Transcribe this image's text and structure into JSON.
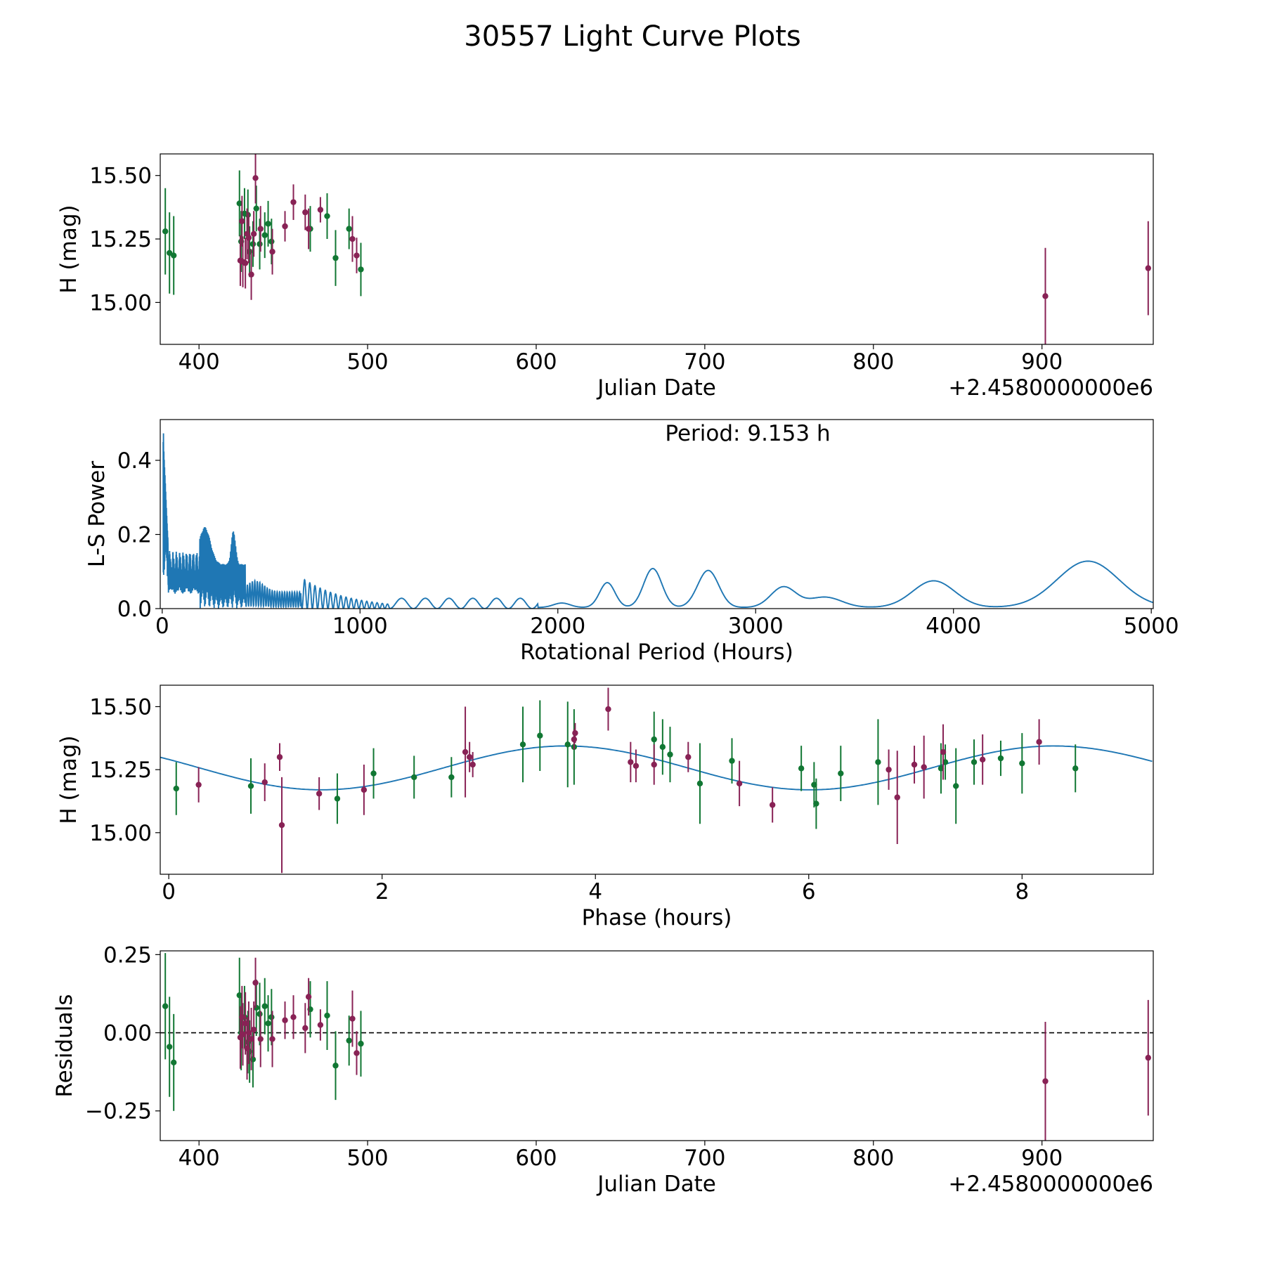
{
  "figure": {
    "title": "30557 Light Curve Plots"
  },
  "colors": {
    "green": "#117733",
    "magenta": "#882255",
    "curve": "#1f77b4",
    "axis": "#000000"
  },
  "chart_data": [
    {
      "type": "scatter",
      "name": "light-curve",
      "xlabel": "Julian Date",
      "ylabel": "H (mag)",
      "offset_label": "+2.4580000000e6",
      "xlim": [
        377,
        966
      ],
      "ylim": [
        14.835,
        15.585
      ],
      "xticks": [
        400,
        500,
        600,
        700,
        800,
        900
      ],
      "xtick_labels": [
        "400",
        "500",
        "600",
        "700",
        "800",
        "900"
      ],
      "yticks": [
        15.0,
        15.25,
        15.5
      ],
      "ytick_labels": [
        "15.00",
        "15.25",
        "15.50"
      ],
      "series": [
        {
          "name": "green",
          "points": [
            {
              "x": 380,
              "y": 15.28,
              "err": 0.17
            },
            {
              "x": 382.5,
              "y": 15.195,
              "err": 0.16
            },
            {
              "x": 385,
              "y": 15.185,
              "err": 0.155
            },
            {
              "x": 424,
              "y": 15.39,
              "err": 0.13
            },
            {
              "x": 425,
              "y": 15.24,
              "err": 0.12
            },
            {
              "x": 427,
              "y": 15.35,
              "err": 0.1
            },
            {
              "x": 429,
              "y": 15.345,
              "err": 0.1
            },
            {
              "x": 430,
              "y": 15.2,
              "err": 0.1
            },
            {
              "x": 432,
              "y": 15.23,
              "err": 0.09
            },
            {
              "x": 434,
              "y": 15.37,
              "err": 0.09
            },
            {
              "x": 436,
              "y": 15.23,
              "err": 0.1
            },
            {
              "x": 439,
              "y": 15.265,
              "err": 0.09
            },
            {
              "x": 441,
              "y": 15.31,
              "err": 0.09
            },
            {
              "x": 443,
              "y": 15.24,
              "err": 0.09
            },
            {
              "x": 466,
              "y": 15.29,
              "err": 0.09
            },
            {
              "x": 476,
              "y": 15.34,
              "err": 0.09
            },
            {
              "x": 481,
              "y": 15.175,
              "err": 0.11
            },
            {
              "x": 489,
              "y": 15.29,
              "err": 0.08
            },
            {
              "x": 496,
              "y": 15.13,
              "err": 0.105
            }
          ]
        },
        {
          "name": "magenta",
          "points": [
            {
              "x": 424.5,
              "y": 15.165,
              "err": 0.1
            },
            {
              "x": 425.5,
              "y": 15.32,
              "err": 0.1
            },
            {
              "x": 426,
              "y": 15.16,
              "err": 0.1
            },
            {
              "x": 427.5,
              "y": 15.155,
              "err": 0.1
            },
            {
              "x": 428.5,
              "y": 15.27,
              "err": 0.1
            },
            {
              "x": 429.5,
              "y": 15.255,
              "err": 0.1
            },
            {
              "x": 431,
              "y": 15.11,
              "err": 0.1
            },
            {
              "x": 432.5,
              "y": 15.27,
              "err": 0.09
            },
            {
              "x": 433.5,
              "y": 15.49,
              "err": 0.1
            },
            {
              "x": 436.5,
              "y": 15.29,
              "err": 0.09
            },
            {
              "x": 443.5,
              "y": 15.2,
              "err": 0.09
            },
            {
              "x": 451,
              "y": 15.3,
              "err": 0.06
            },
            {
              "x": 456,
              "y": 15.395,
              "err": 0.07
            },
            {
              "x": 463,
              "y": 15.355,
              "err": 0.07
            },
            {
              "x": 465,
              "y": 15.29,
              "err": 0.08
            },
            {
              "x": 472,
              "y": 15.365,
              "err": 0.05
            },
            {
              "x": 491,
              "y": 15.25,
              "err": 0.09
            },
            {
              "x": 493.5,
              "y": 15.185,
              "err": 0.07
            },
            {
              "x": 902,
              "y": 15.025,
              "err": 0.19
            },
            {
              "x": 963,
              "y": 15.135,
              "err": 0.185
            }
          ]
        }
      ]
    },
    {
      "type": "line",
      "name": "periodogram",
      "xlabel": "Rotational Period (Hours)",
      "ylabel": "L-S Power",
      "annotation": "Period: 9.153 h",
      "xlim": [
        -10,
        5010
      ],
      "ylim": [
        0,
        0.51
      ],
      "xticks": [
        0,
        1000,
        2000,
        3000,
        4000,
        5000
      ],
      "xtick_labels": [
        "0",
        "1000",
        "2000",
        "3000",
        "4000",
        "5000"
      ],
      "yticks": [
        0,
        0.2,
        0.4
      ],
      "ytick_labels": [
        "0.0",
        "0.2",
        "0.4"
      ],
      "peaks": [
        {
          "x": 2250,
          "power": 0.067,
          "width": 55
        },
        {
          "x": 2480,
          "power": 0.105,
          "width": 65
        },
        {
          "x": 2760,
          "power": 0.1,
          "width": 75
        },
        {
          "x": 3140,
          "power": 0.055,
          "width": 90
        },
        {
          "x": 3350,
          "power": 0.028,
          "width": 120
        },
        {
          "x": 3900,
          "power": 0.072,
          "width": 150
        },
        {
          "x": 4680,
          "power": 0.125,
          "width": 220
        }
      ]
    },
    {
      "type": "scatter",
      "name": "phase-fold",
      "xlabel": "Phase (hours)",
      "ylabel": "H (mag)",
      "xlim": [
        -0.08,
        9.23
      ],
      "ylim": [
        14.835,
        15.585
      ],
      "xticks": [
        0,
        2,
        4,
        6,
        8
      ],
      "xtick_labels": [
        "0",
        "2",
        "4",
        "6",
        "8"
      ],
      "yticks": [
        15.0,
        15.25,
        15.5
      ],
      "ytick_labels": [
        "15.00",
        "15.25",
        "15.50"
      ],
      "model": {
        "mean": 15.257,
        "amplitude": 0.087,
        "period_hours": 4.5765,
        "peak_phase": 3.72
      },
      "series": [
        {
          "name": "green",
          "points": [
            {
              "x": 0.07,
              "y": 15.175,
              "err": 0.105
            },
            {
              "x": 0.77,
              "y": 15.185,
              "err": 0.11
            },
            {
              "x": 1.58,
              "y": 15.135,
              "err": 0.1
            },
            {
              "x": 1.92,
              "y": 15.235,
              "err": 0.1
            },
            {
              "x": 2.3,
              "y": 15.22,
              "err": 0.085
            },
            {
              "x": 2.65,
              "y": 15.22,
              "err": 0.08
            },
            {
              "x": 3.32,
              "y": 15.35,
              "err": 0.15
            },
            {
              "x": 3.48,
              "y": 15.385,
              "err": 0.14
            },
            {
              "x": 3.74,
              "y": 15.35,
              "err": 0.17
            },
            {
              "x": 3.8,
              "y": 15.34,
              "err": 0.15
            },
            {
              "x": 4.55,
              "y": 15.37,
              "err": 0.11
            },
            {
              "x": 4.63,
              "y": 15.34,
              "err": 0.11
            },
            {
              "x": 4.7,
              "y": 15.31,
              "err": 0.11
            },
            {
              "x": 4.98,
              "y": 15.195,
              "err": 0.16
            },
            {
              "x": 5.28,
              "y": 15.285,
              "err": 0.09
            },
            {
              "x": 5.93,
              "y": 15.255,
              "err": 0.09
            },
            {
              "x": 6.05,
              "y": 15.19,
              "err": 0.09
            },
            {
              "x": 6.07,
              "y": 15.115,
              "err": 0.1
            },
            {
              "x": 6.3,
              "y": 15.235,
              "err": 0.11
            },
            {
              "x": 6.65,
              "y": 15.28,
              "err": 0.17
            },
            {
              "x": 7.24,
              "y": 15.255,
              "err": 0.1
            },
            {
              "x": 7.28,
              "y": 15.28,
              "err": 0.07
            },
            {
              "x": 7.38,
              "y": 15.185,
              "err": 0.15
            },
            {
              "x": 7.55,
              "y": 15.28,
              "err": 0.09
            },
            {
              "x": 7.8,
              "y": 15.295,
              "err": 0.07
            },
            {
              "x": 8.0,
              "y": 15.275,
              "err": 0.12
            },
            {
              "x": 8.5,
              "y": 15.255,
              "err": 0.095
            }
          ]
        },
        {
          "name": "magenta",
          "points": [
            {
              "x": 0.28,
              "y": 15.19,
              "err": 0.07
            },
            {
              "x": 0.9,
              "y": 15.2,
              "err": 0.075
            },
            {
              "x": 1.04,
              "y": 15.3,
              "err": 0.055
            },
            {
              "x": 1.06,
              "y": 15.03,
              "err": 0.19
            },
            {
              "x": 1.41,
              "y": 15.155,
              "err": 0.065
            },
            {
              "x": 1.83,
              "y": 15.17,
              "err": 0.1
            },
            {
              "x": 2.78,
              "y": 15.32,
              "err": 0.18
            },
            {
              "x": 2.82,
              "y": 15.3,
              "err": 0.06
            },
            {
              "x": 2.85,
              "y": 15.27,
              "err": 0.05
            },
            {
              "x": 3.8,
              "y": 15.37,
              "err": 0.04
            },
            {
              "x": 3.81,
              "y": 15.395,
              "err": 0.04
            },
            {
              "x": 4.12,
              "y": 15.49,
              "err": 0.085
            },
            {
              "x": 4.33,
              "y": 15.28,
              "err": 0.08
            },
            {
              "x": 4.38,
              "y": 15.265,
              "err": 0.065
            },
            {
              "x": 4.55,
              "y": 15.27,
              "err": 0.08
            },
            {
              "x": 4.87,
              "y": 15.3,
              "err": 0.06
            },
            {
              "x": 5.35,
              "y": 15.195,
              "err": 0.09
            },
            {
              "x": 5.66,
              "y": 15.11,
              "err": 0.07
            },
            {
              "x": 6.75,
              "y": 15.25,
              "err": 0.08
            },
            {
              "x": 6.83,
              "y": 15.14,
              "err": 0.185
            },
            {
              "x": 6.99,
              "y": 15.27,
              "err": 0.075
            },
            {
              "x": 7.08,
              "y": 15.26,
              "err": 0.125
            },
            {
              "x": 7.26,
              "y": 15.32,
              "err": 0.11
            },
            {
              "x": 7.63,
              "y": 15.29,
              "err": 0.1
            },
            {
              "x": 8.16,
              "y": 15.36,
              "err": 0.09
            }
          ]
        }
      ]
    },
    {
      "type": "scatter",
      "name": "residuals",
      "xlabel": "Julian Date",
      "ylabel": "Residuals",
      "offset_label": "+2.4580000000e6",
      "xlim": [
        377,
        966
      ],
      "ylim": [
        -0.345,
        0.262
      ],
      "xticks": [
        400,
        500,
        600,
        700,
        800,
        900
      ],
      "xtick_labels": [
        "400",
        "500",
        "600",
        "700",
        "800",
        "900"
      ],
      "yticks": [
        -0.25,
        0.0,
        0.25
      ],
      "ytick_labels": [
        "−0.25",
        "0.00",
        "0.25"
      ],
      "reference_line": 0,
      "series": [
        {
          "name": "green",
          "points": [
            {
              "x": 380,
              "y": 0.085,
              "err": 0.17
            },
            {
              "x": 382.5,
              "y": -0.045,
              "err": 0.16
            },
            {
              "x": 385,
              "y": -0.095,
              "err": 0.155
            },
            {
              "x": 424,
              "y": 0.12,
              "err": 0.12
            },
            {
              "x": 425,
              "y": 0.0,
              "err": 0.12
            },
            {
              "x": 427,
              "y": 0.05,
              "err": 0.1
            },
            {
              "x": 429,
              "y": -0.03,
              "err": 0.1
            },
            {
              "x": 430,
              "y": -0.06,
              "err": 0.1
            },
            {
              "x": 432,
              "y": -0.085,
              "err": 0.09
            },
            {
              "x": 434,
              "y": 0.08,
              "err": 0.09
            },
            {
              "x": 436,
              "y": 0.06,
              "err": 0.1
            },
            {
              "x": 439,
              "y": 0.085,
              "err": 0.09
            },
            {
              "x": 441,
              "y": 0.03,
              "err": 0.09
            },
            {
              "x": 443,
              "y": 0.05,
              "err": 0.09
            },
            {
              "x": 466,
              "y": 0.075,
              "err": 0.09
            },
            {
              "x": 476,
              "y": 0.055,
              "err": 0.11
            },
            {
              "x": 481,
              "y": -0.105,
              "err": 0.11
            },
            {
              "x": 489,
              "y": -0.025,
              "err": 0.08
            },
            {
              "x": 496,
              "y": -0.035,
              "err": 0.105
            }
          ]
        },
        {
          "name": "magenta",
          "points": [
            {
              "x": 424.5,
              "y": -0.015,
              "err": 0.1
            },
            {
              "x": 425.5,
              "y": 0.05,
              "err": 0.1
            },
            {
              "x": 426,
              "y": -0.005,
              "err": 0.1
            },
            {
              "x": 427.5,
              "y": 0.03,
              "err": 0.1
            },
            {
              "x": 428.5,
              "y": -0.05,
              "err": 0.1
            },
            {
              "x": 429.5,
              "y": 0.0,
              "err": 0.1
            },
            {
              "x": 431,
              "y": -0.02,
              "err": 0.1
            },
            {
              "x": 432.5,
              "y": 0.01,
              "err": 0.09
            },
            {
              "x": 433.5,
              "y": 0.16,
              "err": 0.08
            },
            {
              "x": 436.5,
              "y": -0.02,
              "err": 0.09
            },
            {
              "x": 443.5,
              "y": -0.02,
              "err": 0.09
            },
            {
              "x": 451,
              "y": 0.04,
              "err": 0.06
            },
            {
              "x": 456,
              "y": 0.05,
              "err": 0.07
            },
            {
              "x": 463,
              "y": 0.015,
              "err": 0.08
            },
            {
              "x": 465,
              "y": 0.115,
              "err": 0.06
            },
            {
              "x": 472,
              "y": 0.025,
              "err": 0.05
            },
            {
              "x": 491,
              "y": 0.045,
              "err": 0.09
            },
            {
              "x": 493.5,
              "y": -0.065,
              "err": 0.07
            },
            {
              "x": 902,
              "y": -0.155,
              "err": 0.19
            },
            {
              "x": 963,
              "y": -0.08,
              "err": 0.185
            }
          ]
        }
      ]
    }
  ]
}
